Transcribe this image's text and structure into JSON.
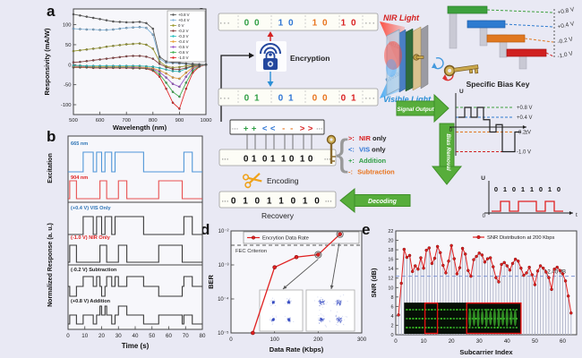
{
  "figure": {
    "bg": "#e9e9f4"
  },
  "panel_labels": {
    "a": "a",
    "b": "b",
    "c": "c",
    "d": "d",
    "e": "e"
  },
  "chart_data": [
    {
      "id": "a",
      "type": "line",
      "xlabel": "Wavelength (nm)",
      "ylabel": "Responsivity (mA/W)",
      "x": [
        500,
        525,
        550,
        575,
        600,
        625,
        650,
        675,
        700,
        725,
        750,
        775,
        800,
        825,
        850,
        875,
        900,
        925,
        950,
        975,
        1000
      ],
      "xticks": [
        500,
        600,
        700,
        800,
        900,
        1000
      ],
      "yticks": [
        -100,
        -50,
        0,
        50,
        100
      ],
      "ylim": [
        -125,
        140
      ],
      "legend_position": "top-right",
      "series": [
        {
          "name": "-1.0 V",
          "color": "#e02828",
          "values": [
            -7,
            -7,
            -7,
            -8,
            -8,
            -8,
            -8,
            -8,
            -8,
            -9,
            -9,
            -10,
            -15,
            -30,
            -60,
            -95,
            -110,
            -60,
            -20,
            -5,
            0
          ]
        },
        {
          "name": "-0.6 V",
          "color": "#3faf4f",
          "values": [
            -6,
            -6,
            -6,
            -7,
            -7,
            -7,
            -7,
            -7,
            -7,
            -8,
            -8,
            -9,
            -13,
            -24,
            -45,
            -68,
            -80,
            -45,
            -15,
            -4,
            0
          ]
        },
        {
          "name": "-0.5 V",
          "color": "#9b59c8",
          "values": [
            -5,
            -5,
            -5,
            -6,
            -6,
            -6,
            -6,
            -6,
            -6,
            -7,
            -7,
            -8,
            -11,
            -18,
            -32,
            -48,
            -55,
            -30,
            -10,
            -3,
            0
          ]
        },
        {
          "name": "-0.4 V",
          "color": "#e8a33d",
          "values": [
            -4,
            -4,
            -4,
            -5,
            -5,
            -5,
            -5,
            -5,
            -5,
            -5,
            -6,
            -7,
            -9,
            -14,
            -22,
            -32,
            -35,
            -20,
            -7,
            -2,
            0
          ]
        },
        {
          "name": "-0.3 V",
          "color": "#2bbfbf",
          "values": [
            -2,
            -2,
            -3,
            -3,
            -3,
            -3,
            -3,
            -3,
            -3,
            -3,
            -3,
            -4,
            -5,
            -8,
            -12,
            -16,
            -17,
            -10,
            -4,
            -1,
            0
          ]
        },
        {
          "name": "-0.2 V",
          "color": "#8b4545",
          "values": [
            6,
            7,
            9,
            11,
            13,
            15,
            17,
            19,
            21,
            22,
            22,
            20,
            15,
            2,
            -6,
            -11,
            -12,
            -8,
            -3,
            -1,
            0
          ]
        },
        {
          "name": "0 V",
          "color": "#9a9a30",
          "values": [
            34,
            36,
            38,
            40,
            42,
            45,
            47,
            49,
            51,
            52,
            53,
            50,
            40,
            8,
            -4,
            -7,
            -6,
            -3,
            -1,
            0,
            0
          ]
        },
        {
          "name": "+0.4 V",
          "color": "#85b7dd",
          "values": [
            90,
            89,
            88,
            88,
            87,
            87,
            88,
            90,
            92,
            93,
            94,
            92,
            75,
            15,
            5,
            4,
            3,
            2,
            1,
            0,
            0
          ]
        },
        {
          "name": "+0.8 V",
          "color": "#5a5a5a",
          "values": [
            126,
            123,
            120,
            117,
            114,
            111,
            108,
            107,
            106,
            106,
            107,
            104,
            90,
            20,
            8,
            6,
            5,
            3,
            2,
            1,
            0
          ]
        }
      ]
    },
    {
      "id": "b",
      "type": "step",
      "xlabel": "Time (s)",
      "ylabel_top": "Excitation",
      "ylabel_bottom": "Normalized Response (a. u.)",
      "xticks": [
        0,
        10,
        20,
        30,
        40,
        50,
        60,
        70,
        80
      ],
      "xlim": [
        0,
        80
      ],
      "traces": [
        {
          "name": "665 nm",
          "color": "#4f96d8",
          "label_color": "#2e75b6",
          "points": [
            [
              0,
              0
            ],
            [
              9,
              1
            ],
            [
              15,
              0
            ],
            [
              17,
              1
            ],
            [
              20,
              0
            ],
            [
              22,
              1
            ],
            [
              26,
              0
            ],
            [
              28,
              1
            ],
            [
              45,
              0
            ],
            [
              69,
              1
            ],
            [
              74,
              0
            ]
          ]
        },
        {
          "name": "904 nm",
          "color": "#e85050",
          "label_color": "#e02020",
          "points": [
            [
              0,
              0
            ],
            [
              1,
              1
            ],
            [
              5,
              0
            ],
            [
              19,
              1
            ],
            [
              23,
              0
            ],
            [
              30,
              1
            ],
            [
              35,
              0
            ],
            [
              54,
              1
            ],
            [
              68,
              0
            ]
          ]
        },
        {
          "name": "(+0.4 V) VIS Only",
          "color": "#3a3a3a",
          "label_color": "#2e75b6",
          "points": [
            [
              0,
              0
            ],
            [
              9,
              1
            ],
            [
              15,
              0
            ],
            [
              17,
              1
            ],
            [
              20,
              0
            ],
            [
              22,
              1
            ],
            [
              26,
              0
            ],
            [
              28,
              1
            ],
            [
              45,
              0
            ],
            [
              69,
              1
            ],
            [
              74,
              0
            ]
          ]
        },
        {
          "name": "(-1.0 V) NIR Only",
          "color": "#3a3a3a",
          "label_color": "#e02020",
          "points": [
            [
              0,
              0
            ],
            [
              1,
              1
            ],
            [
              5,
              0
            ],
            [
              19,
              1
            ],
            [
              23,
              0
            ],
            [
              30,
              1
            ],
            [
              35,
              0
            ],
            [
              54,
              1
            ],
            [
              68,
              0
            ]
          ]
        },
        {
          "name": "(-0.2 V) Subtraction",
          "color": "#3a3a3a",
          "label_color": "#222222",
          "points": [
            [
              0,
              0
            ],
            [
              1,
              -1
            ],
            [
              5,
              0
            ],
            [
              9,
              1
            ],
            [
              15,
              0
            ],
            [
              17,
              1
            ],
            [
              19,
              0
            ],
            [
              20,
              -1
            ],
            [
              22,
              0
            ],
            [
              23,
              1
            ],
            [
              26,
              0
            ],
            [
              28,
              1
            ],
            [
              30,
              0
            ],
            [
              35,
              1
            ],
            [
              45,
              0
            ],
            [
              54,
              -1
            ],
            [
              68,
              0
            ],
            [
              69,
              1
            ],
            [
              74,
              0
            ]
          ]
        },
        {
          "name": "(+0.8 V) Addition",
          "color": "#3a3a3a",
          "label_color": "#222222",
          "points": [
            [
              0,
              0
            ],
            [
              1,
              1
            ],
            [
              5,
              0
            ],
            [
              9,
              1
            ],
            [
              15,
              0
            ],
            [
              17,
              1
            ],
            [
              19,
              2
            ],
            [
              20,
              1
            ],
            [
              22,
              2
            ],
            [
              23,
              1
            ],
            [
              26,
              0
            ],
            [
              28,
              1
            ],
            [
              30,
              2
            ],
            [
              35,
              1
            ],
            [
              45,
              0
            ],
            [
              54,
              1
            ],
            [
              68,
              0
            ],
            [
              69,
              1
            ],
            [
              74,
              0
            ]
          ]
        }
      ]
    },
    {
      "id": "d",
      "type": "line",
      "yscale": "log",
      "xlabel": "Data Rate (Kbps)",
      "ylabel": "BER",
      "legend": "Encrytion Data Rate",
      "x": [
        50,
        100,
        150,
        200,
        250
      ],
      "y": [
        1e-05,
        0.00085,
        0.0017,
        0.002,
        0.008
      ],
      "circled_x": [
        200,
        250
      ],
      "fec": {
        "label": "FEC Criterion",
        "value": 0.0038
      },
      "xticks": [
        0,
        100,
        200,
        300
      ],
      "ytick_labels": [
        "10⁻²",
        "10⁻³",
        "10⁻⁴",
        "10⁻⁵"
      ],
      "insets": [
        "QPSK constellation (tight clusters)",
        "QPSK constellation (dispersed clusters)"
      ]
    },
    {
      "id": "e",
      "type": "stem-line",
      "xlabel": "Subcarrier Index",
      "ylabel": "SNR (dB)",
      "legend": "SNR Distribution at 200 Kbps",
      "threshold": {
        "label": "12.40 dB",
        "value": 12.4
      },
      "xticks": [
        0,
        10,
        20,
        30,
        40,
        50,
        60
      ],
      "yticks": [
        0,
        2,
        4,
        6,
        8,
        10,
        12,
        14,
        16,
        18,
        20,
        22
      ],
      "values": [
        4.2,
        10.9,
        18.1,
        16.4,
        16.8,
        13.4,
        14.6,
        13.9,
        16.3,
        14.1,
        17.9,
        18.4,
        15.1,
        16.2,
        18.7,
        17.4,
        14.7,
        13.1,
        15.6,
        18.9,
        16.1,
        12.9,
        14.2,
        18.3,
        17.1,
        13.6,
        12.4,
        15.9,
        16.6,
        17.3,
        16.9,
        15.4,
        16.1,
        16.3,
        14.4,
        12.1,
        11.2,
        14.9,
        15.3,
        14.6,
        13.7,
        15.1,
        16.0,
        15.6,
        14.1,
        12.6,
        13.1,
        14.3,
        12.7,
        10.6,
        13.5,
        14.6,
        14.1,
        13.3,
        12.1,
        9.6,
        13.9,
        14.3,
        13.6,
        12.9,
        11.4,
        8.2,
        4.6
      ],
      "inset": "OFDM band spectrogram with red highlighted subcarrier groups"
    }
  ],
  "panel_c": {
    "nir_strip": {
      "prefix": "···",
      "groups": [
        "0 0",
        "1 0",
        "1 0",
        "1 0"
      ],
      "suffix": "···"
    },
    "vis_strip": {
      "prefix": "···",
      "groups": [
        "0 1",
        "0 1",
        "0 0",
        "0 1"
      ],
      "suffix": "···"
    },
    "nir_light": "NIR Light",
    "visible_light": "Visible Light",
    "beam_nir_bits": "00101010",
    "beam_vis_bits": "01010001",
    "encryption": "Encryption",
    "specific_bias_key": "Specific Bias Key",
    "bias_labels": [
      "+0.8 V",
      "+0.4 V",
      "-0.2 V",
      "-1.0 V"
    ],
    "bias_values": [
      0.8,
      0.4,
      -0.2,
      -1.0
    ],
    "bias_colors": [
      "#3da03d",
      "#2e7bd0",
      "#e07820",
      "#d02020"
    ],
    "signal_output": "Signal Output",
    "bias_removal": "Bias Removal",
    "decoding": "Decoding",
    "encoding": "Encoding",
    "recovery": "Recovery",
    "ops": [
      "+",
      "+",
      "<",
      "<",
      "-",
      "-",
      ">",
      ">"
    ],
    "encoded_bits": [
      "0",
      "1",
      "0",
      "1",
      "1",
      "0",
      "1",
      "0"
    ],
    "recovery_bits": "0 1 0 1 1 0 1 0",
    "op_legend": [
      {
        "op": ">:",
        "name": "NIR",
        "rest": " only"
      },
      {
        "op": "<:",
        "name": "VIS",
        "rest": " only"
      },
      {
        "op": "+:",
        "name": "Addition",
        "rest": ""
      },
      {
        "op": "-:",
        "name": "Subtraction",
        "rest": ""
      }
    ],
    "signal_plot": {
      "u": "U",
      "t": "t",
      "zero": "0",
      "levels": [
        0.4,
        0.8,
        0.4,
        0.8,
        0.3,
        -0.2,
        0.1,
        -1.0,
        -1.0,
        -0.2
      ]
    },
    "recovered_plot": {
      "u": "U",
      "t": "t",
      "zero": "0",
      "bits": "0 1 0 1 1 0 1 0"
    }
  }
}
